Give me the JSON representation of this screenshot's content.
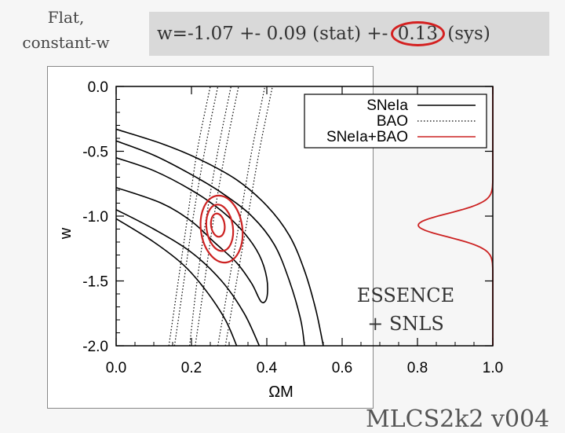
{
  "header": {
    "corner_line1": "Flat,",
    "corner_line2": "constant-w",
    "result_text": "w=-1.07 +- 0.09 (stat) +- 0.13 (sys)",
    "highlight_value": "0.13"
  },
  "footer": {
    "text": "MLCS2k2 v004"
  },
  "annotation": {
    "line1": "ESSENCE",
    "line2": "+ SNLS"
  },
  "colors": {
    "highlight": "#d42020",
    "combined": "#cc2222",
    "snia": "#000000",
    "bao": "#000000"
  },
  "chart_data": {
    "type": "line",
    "title": "",
    "xlabel": "ΩM",
    "ylabel": "w",
    "xlim": [
      0.0,
      1.0
    ],
    "ylim": [
      -2.0,
      0.0
    ],
    "xticks": [
      "0.0",
      "0.2",
      "0.4",
      "0.6",
      "0.8",
      "1.0"
    ],
    "yticks": [
      "0.0",
      "-0.5",
      "-1.0",
      "-1.5",
      "-2.0"
    ],
    "legend": {
      "placement": "top-right",
      "entries": [
        {
          "label": "SNeIa",
          "style": "solid",
          "color": "#000000"
        },
        {
          "label": "BAO",
          "style": "dotted",
          "color": "#000000"
        },
        {
          "label": "SNeIa+BAO",
          "style": "solid",
          "color": "#cc2222"
        }
      ]
    },
    "series": [
      {
        "name": "SNeIa",
        "contours": [
          [
            [
              0.0,
              -0.55
            ],
            [
              0.1,
              -0.65
            ],
            [
              0.2,
              -0.8
            ],
            [
              0.28,
              -0.96
            ],
            [
              0.34,
              -1.13
            ],
            [
              0.38,
              -1.3
            ],
            [
              0.4,
              -1.48
            ],
            [
              0.4,
              -1.63
            ],
            [
              0.385,
              -1.66
            ],
            [
              0.36,
              -1.52
            ],
            [
              0.32,
              -1.36
            ],
            [
              0.26,
              -1.2
            ],
            [
              0.2,
              -1.04
            ],
            [
              0.12,
              -0.9
            ],
            [
              0.0,
              -0.78
            ]
          ],
          [
            [
              0.0,
              -0.42
            ],
            [
              0.1,
              -0.53
            ],
            [
              0.2,
              -0.68
            ],
            [
              0.28,
              -0.82
            ],
            [
              0.36,
              -1.0
            ],
            [
              0.42,
              -1.22
            ],
            [
              0.46,
              -1.5
            ],
            [
              0.49,
              -1.8
            ],
            [
              0.5,
              -2.0
            ]
          ],
          [
            [
              0.0,
              -0.95
            ],
            [
              0.1,
              -1.1
            ],
            [
              0.2,
              -1.28
            ],
            [
              0.28,
              -1.5
            ],
            [
              0.34,
              -1.75
            ],
            [
              0.38,
              -2.0
            ]
          ],
          [
            [
              0.0,
              -0.33
            ],
            [
              0.12,
              -0.44
            ],
            [
              0.22,
              -0.56
            ],
            [
              0.32,
              -0.72
            ],
            [
              0.4,
              -0.92
            ],
            [
              0.46,
              -1.15
            ],
            [
              0.5,
              -1.42
            ],
            [
              0.53,
              -1.72
            ],
            [
              0.55,
              -2.0
            ]
          ],
          [
            [
              0.0,
              -1.02
            ],
            [
              0.1,
              -1.2
            ],
            [
              0.18,
              -1.38
            ],
            [
              0.24,
              -1.58
            ],
            [
              0.29,
              -1.8
            ],
            [
              0.32,
              -2.0
            ]
          ]
        ]
      },
      {
        "name": "BAO",
        "contours": [
          [
            [
              0.195,
              -2.0
            ],
            [
              0.215,
              -1.5
            ],
            [
              0.24,
              -1.0
            ],
            [
              0.27,
              -0.5
            ],
            [
              0.305,
              0.0
            ]
          ],
          [
            [
              0.21,
              -2.0
            ],
            [
              0.235,
              -1.5
            ],
            [
              0.26,
              -1.0
            ],
            [
              0.29,
              -0.5
            ],
            [
              0.325,
              0.0
            ]
          ],
          [
            [
              0.155,
              -2.0
            ],
            [
              0.18,
              -1.5
            ],
            [
              0.205,
              -1.0
            ],
            [
              0.235,
              -0.5
            ],
            [
              0.27,
              0.0
            ]
          ],
          [
            [
              0.27,
              -2.0
            ],
            [
              0.3,
              -1.5
            ],
            [
              0.33,
              -1.0
            ],
            [
              0.36,
              -0.5
            ],
            [
              0.395,
              0.0
            ]
          ],
          [
            [
              0.14,
              -2.0
            ],
            [
              0.165,
              -1.5
            ],
            [
              0.19,
              -1.0
            ],
            [
              0.215,
              -0.5
            ],
            [
              0.25,
              0.0
            ]
          ],
          [
            [
              0.29,
              -2.0
            ],
            [
              0.32,
              -1.5
            ],
            [
              0.35,
              -1.0
            ],
            [
              0.38,
              -0.5
            ],
            [
              0.415,
              0.0
            ]
          ]
        ]
      },
      {
        "name": "SNeIa+BAO",
        "ellipses": [
          {
            "cx": 0.27,
            "cy": -1.07,
            "rx": 0.018,
            "ry": 0.09
          },
          {
            "cx": 0.275,
            "cy": -1.09,
            "rx": 0.035,
            "ry": 0.18
          },
          {
            "cx": 0.28,
            "cy": -1.1,
            "rx": 0.055,
            "ry": 0.26
          }
        ],
        "marginal": {
          "peak_w": -1.07,
          "sigma": 0.09
        }
      }
    ]
  }
}
